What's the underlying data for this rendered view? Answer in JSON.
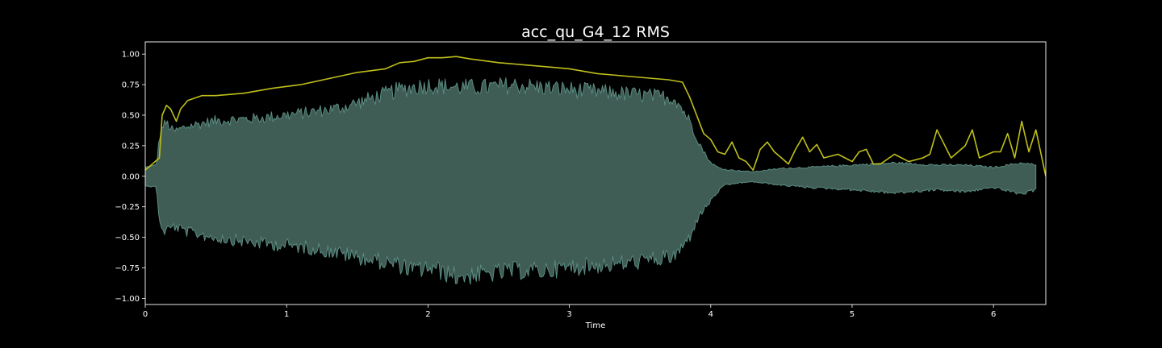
{
  "chart_data": {
    "type": "area",
    "title": "acc_qu_G4_12 RMS",
    "xlabel": "Time",
    "ylabel": "",
    "xlim": [
      0,
      6.37
    ],
    "ylim": [
      -1.05,
      1.1
    ],
    "xticks": [
      0,
      1,
      2,
      3,
      4,
      5,
      6
    ],
    "yticks": [
      1.0,
      0.75,
      0.5,
      0.25,
      0.0,
      -0.25,
      -0.5,
      -0.75,
      -1.0
    ],
    "ytick_labels": [
      "1.00",
      "0.75",
      "0.50",
      "0.25",
      "0.00",
      "−0.25",
      "−0.50",
      "−0.75",
      "−1.00"
    ],
    "grid": false,
    "series": [
      {
        "kind": "waveform",
        "color": "#5a8c80",
        "fill_color": "#3f5c55",
        "x": [
          0.0,
          0.08,
          0.1,
          0.12,
          0.15,
          0.2,
          0.3,
          0.5,
          0.8,
          1.0,
          1.2,
          1.4,
          1.6,
          1.8,
          1.9,
          2.0,
          2.2,
          2.4,
          2.6,
          2.8,
          3.0,
          3.2,
          3.4,
          3.6,
          3.75,
          3.85,
          3.9,
          3.95,
          4.0,
          4.05,
          4.1,
          4.2,
          4.3,
          4.5,
          4.7,
          5.0,
          5.3,
          5.6,
          5.8,
          6.0,
          6.2,
          6.3
        ],
        "upper": [
          0.08,
          0.1,
          0.35,
          0.45,
          0.48,
          0.4,
          0.45,
          0.5,
          0.52,
          0.55,
          0.58,
          0.62,
          0.7,
          0.78,
          0.8,
          0.82,
          0.8,
          0.8,
          0.82,
          0.8,
          0.78,
          0.76,
          0.74,
          0.72,
          0.7,
          0.5,
          0.35,
          0.22,
          0.12,
          0.08,
          0.06,
          0.05,
          0.04,
          0.07,
          0.08,
          0.1,
          0.12,
          0.1,
          0.1,
          0.08,
          0.12,
          0.1
        ],
        "lower": [
          -0.08,
          -0.1,
          -0.4,
          -0.5,
          -0.48,
          -0.45,
          -0.5,
          -0.55,
          -0.6,
          -0.62,
          -0.65,
          -0.7,
          -0.75,
          -0.8,
          -0.85,
          -0.82,
          -0.9,
          -0.88,
          -0.85,
          -0.85,
          -0.82,
          -0.8,
          -0.78,
          -0.75,
          -0.72,
          -0.55,
          -0.4,
          -0.3,
          -0.22,
          -0.14,
          -0.08,
          -0.06,
          -0.05,
          -0.08,
          -0.1,
          -0.12,
          -0.15,
          -0.12,
          -0.14,
          -0.1,
          -0.16,
          -0.12
        ]
      },
      {
        "kind": "rms",
        "color": "#bfbf1a",
        "x": [
          0.0,
          0.05,
          0.1,
          0.12,
          0.15,
          0.18,
          0.22,
          0.25,
          0.3,
          0.4,
          0.5,
          0.7,
          0.9,
          1.1,
          1.3,
          1.5,
          1.7,
          1.8,
          1.9,
          2.0,
          2.1,
          2.2,
          2.3,
          2.5,
          2.7,
          2.9,
          3.0,
          3.2,
          3.4,
          3.6,
          3.7,
          3.8,
          3.85,
          3.9,
          3.95,
          4.0,
          4.05,
          4.1,
          4.15,
          4.2,
          4.25,
          4.3,
          4.35,
          4.4,
          4.45,
          4.5,
          4.55,
          4.6,
          4.65,
          4.7,
          4.75,
          4.8,
          4.9,
          5.0,
          5.05,
          5.1,
          5.15,
          5.2,
          5.3,
          5.4,
          5.5,
          5.55,
          5.6,
          5.7,
          5.75,
          5.8,
          5.85,
          5.9,
          6.0,
          6.05,
          6.1,
          6.15,
          6.2,
          6.25,
          6.3,
          6.37
        ],
        "y": [
          0.05,
          0.1,
          0.15,
          0.5,
          0.58,
          0.55,
          0.45,
          0.55,
          0.62,
          0.66,
          0.66,
          0.68,
          0.72,
          0.75,
          0.8,
          0.85,
          0.88,
          0.93,
          0.94,
          0.97,
          0.97,
          0.98,
          0.96,
          0.93,
          0.91,
          0.89,
          0.88,
          0.84,
          0.82,
          0.8,
          0.79,
          0.77,
          0.65,
          0.5,
          0.35,
          0.3,
          0.2,
          0.18,
          0.28,
          0.15,
          0.12,
          0.05,
          0.22,
          0.28,
          0.2,
          0.15,
          0.1,
          0.22,
          0.32,
          0.2,
          0.26,
          0.15,
          0.18,
          0.12,
          0.2,
          0.22,
          0.1,
          0.1,
          0.18,
          0.12,
          0.15,
          0.18,
          0.38,
          0.15,
          0.2,
          0.25,
          0.38,
          0.15,
          0.2,
          0.2,
          0.35,
          0.15,
          0.45,
          0.2,
          0.38,
          0.0
        ]
      }
    ]
  }
}
